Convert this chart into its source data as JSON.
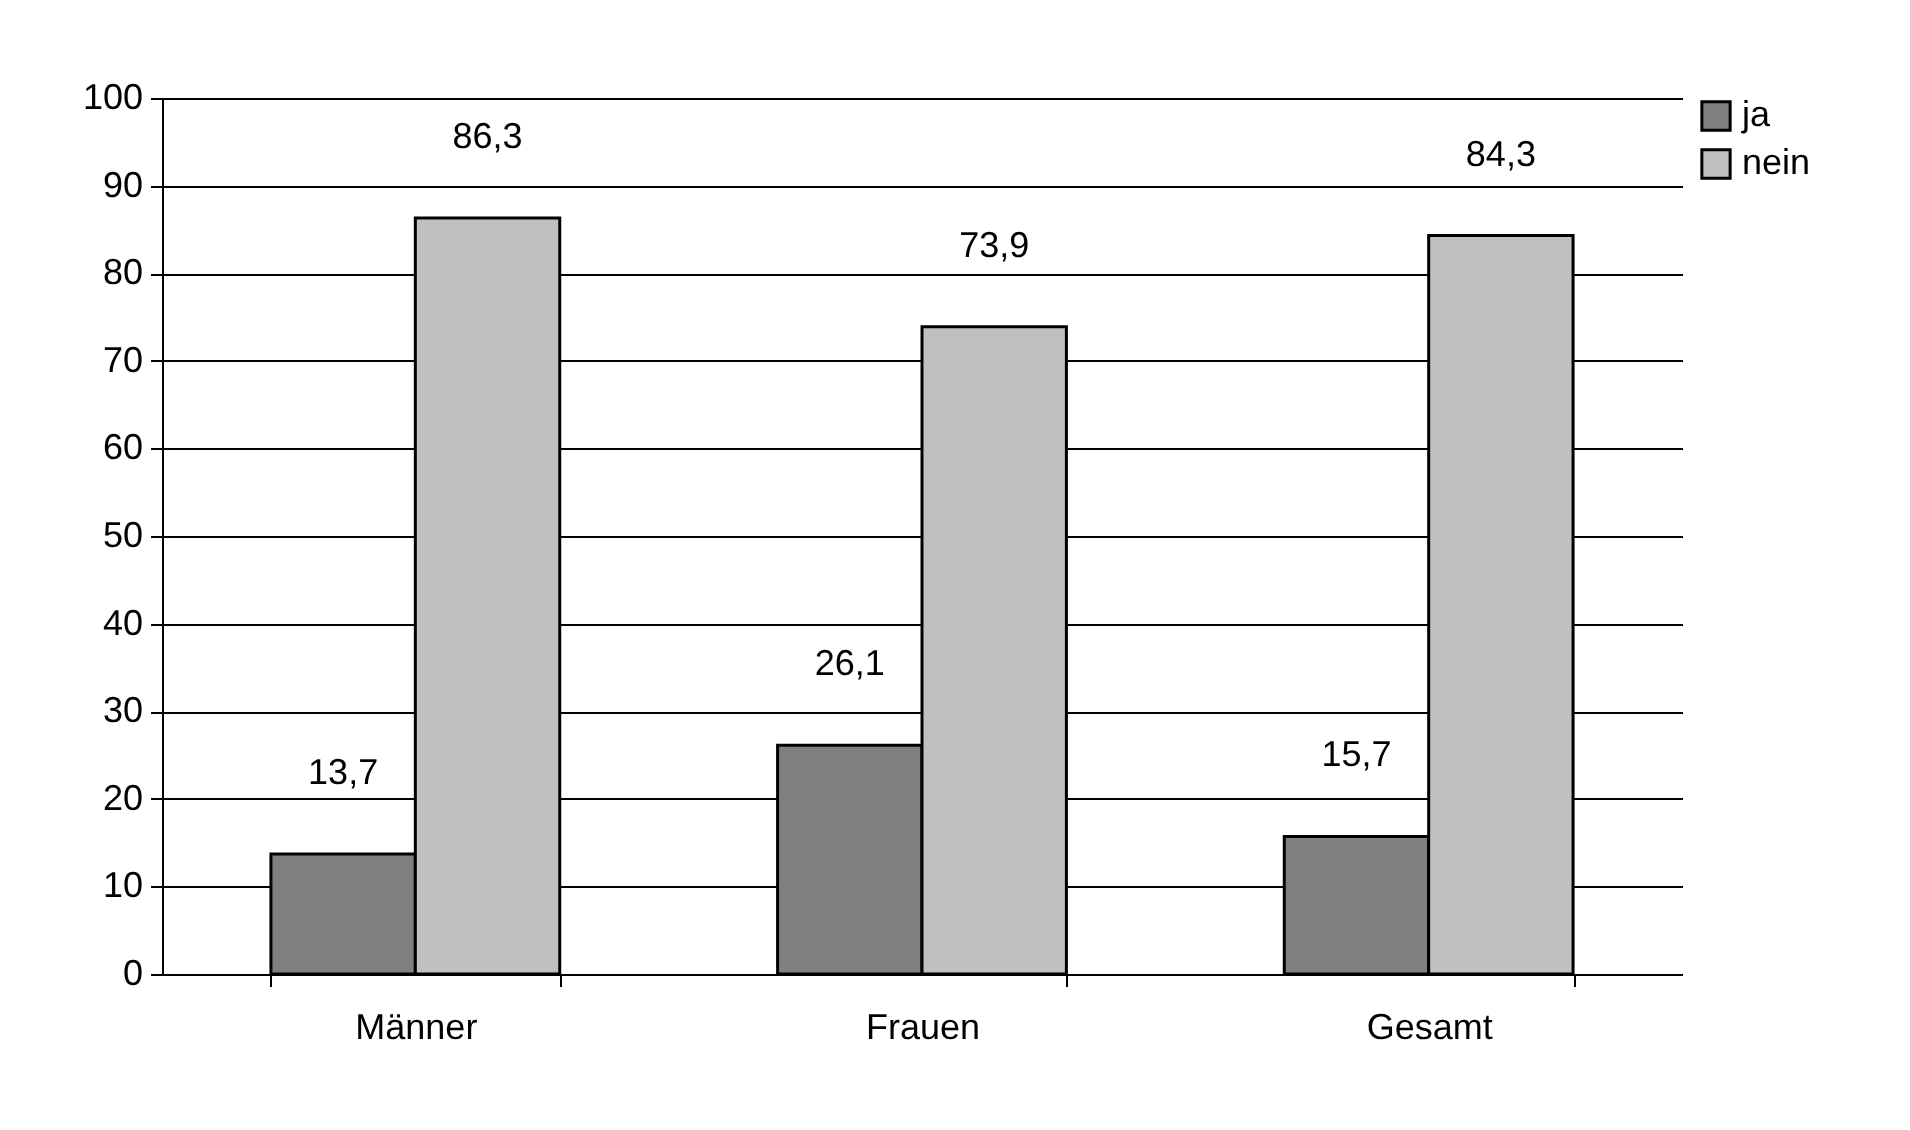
{
  "chart_data": {
    "type": "bar",
    "categories": [
      "Männer",
      "Frauen",
      "Gesamt"
    ],
    "series": [
      {
        "name": "ja",
        "color": "#808080",
        "values": [
          13.7,
          26.1,
          15.7
        ],
        "value_labels": [
          "13,7",
          "26,1",
          "15,7"
        ]
      },
      {
        "name": "nein",
        "color": "#c0c0c0",
        "values": [
          86.3,
          73.9,
          84.3
        ],
        "value_labels": [
          "86,3",
          "73,9",
          "84,3"
        ]
      }
    ],
    "ylim": [
      0,
      100
    ],
    "yticks": [
      0,
      10,
      20,
      30,
      40,
      50,
      60,
      70,
      80,
      90,
      100
    ],
    "grid": "y",
    "legend": "right"
  }
}
